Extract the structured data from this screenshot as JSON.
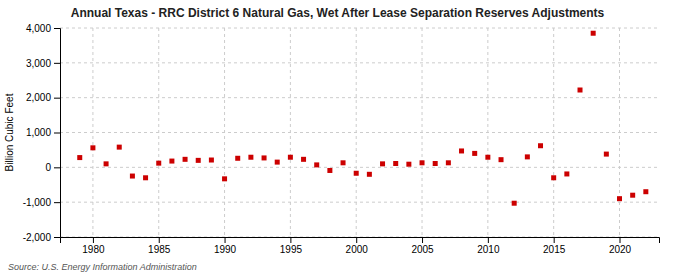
{
  "chart_data": {
    "type": "scatter",
    "title": "Annual Texas - RRC District 6 Natural Gas, Wet After Lease Separation Reserves Adjustments",
    "ylabel": "Billion Cubic Feet",
    "source": "Source: U.S. Energy Information Administration",
    "color": "#cc0000",
    "marker": "square",
    "grid": true,
    "xlim": [
      1977.5,
      2023
    ],
    "ylim": [
      -2000,
      4000
    ],
    "xticks": [
      1980,
      1985,
      1990,
      1995,
      2000,
      2005,
      2010,
      2015,
      2020
    ],
    "yticks": [
      {
        "value": -2000,
        "label": "-2,000"
      },
      {
        "value": -1000,
        "label": "-1,000"
      },
      0,
      {
        "value": 1000,
        "label": "1,000"
      },
      {
        "value": 2000,
        "label": "2,000"
      },
      {
        "value": 3000,
        "label": "3,000"
      },
      {
        "value": 4000,
        "label": "4,000"
      }
    ],
    "x": [
      1979,
      1980,
      1981,
      1982,
      1983,
      1984,
      1985,
      1986,
      1987,
      1988,
      1989,
      1990,
      1991,
      1992,
      1993,
      1994,
      1995,
      1996,
      1997,
      1998,
      1999,
      2000,
      2001,
      2002,
      2003,
      2004,
      2005,
      2006,
      2007,
      2008,
      2009,
      2010,
      2011,
      2012,
      2013,
      2014,
      2015,
      2016,
      2017,
      2018,
      2019,
      2020,
      2021,
      2022
    ],
    "values": [
      280,
      560,
      100,
      580,
      -250,
      -300,
      120,
      180,
      230,
      200,
      210,
      -330,
      260,
      290,
      270,
      150,
      290,
      230,
      70,
      -90,
      130,
      -170,
      -200,
      100,
      110,
      90,
      130,
      110,
      130,
      470,
      400,
      290,
      220,
      -1030,
      300,
      620,
      -300,
      -190,
      2220,
      3850,
      380,
      -900,
      -800,
      -700
    ]
  }
}
